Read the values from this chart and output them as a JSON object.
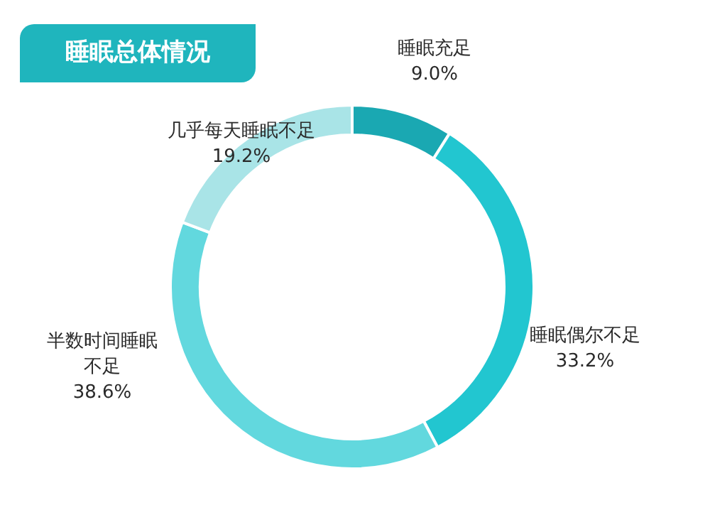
{
  "chart_data": {
    "type": "donut",
    "title": "睡眠总体情况",
    "categories": [
      "睡眠充足",
      "睡眠偶尔不足",
      "半数时间睡眠不足",
      "几乎每天睡眠不足"
    ],
    "values": [
      9.0,
      33.2,
      38.6,
      19.2
    ],
    "value_labels": [
      "9.0%",
      "33.2%",
      "38.6%",
      "19.2%"
    ],
    "colors": [
      "#1aa8b2",
      "#22c6d0",
      "#62d8de",
      "#a9e4e7"
    ]
  }
}
